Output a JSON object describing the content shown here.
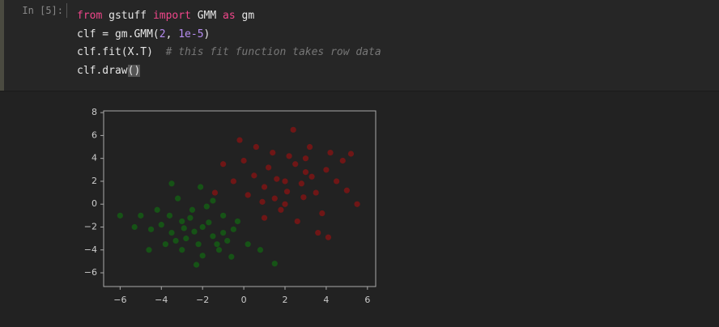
{
  "prompt": "In [5]:",
  "code": {
    "lines": [
      [
        "from",
        " gstuff ",
        "import",
        " GMM ",
        "as",
        " gm"
      ],
      [
        "clf = gm.GMM(",
        "2",
        ", ",
        "1e-5",
        ")"
      ],
      [
        "clf.fit(X.T)  ",
        "# this fit function takes row data"
      ],
      [
        "clf.draw",
        "()"
      ]
    ]
  },
  "chart_data": {
    "type": "scatter",
    "xlim": [
      -6.8,
      6.4
    ],
    "ylim": [
      -7.2,
      8.15
    ],
    "xticks": [
      {
        "value": -6,
        "label": "−6"
      },
      {
        "value": -4,
        "label": "−4"
      },
      {
        "value": -2,
        "label": "−2"
      },
      0,
      2,
      4,
      6
    ],
    "yticks": [
      {
        "value": -6,
        "label": "−6"
      },
      {
        "value": -4,
        "label": "−4"
      },
      {
        "value": -2,
        "label": "−2"
      },
      0,
      2,
      4,
      6,
      8
    ],
    "series": [
      {
        "color": "#00b000",
        "x": [
          -2,
          -3,
          -1.5,
          -2.5,
          -3.5,
          -1,
          -2.2,
          -4,
          -0.5,
          -2.8,
          -1.8,
          -3.2,
          -4.5,
          -1.2,
          -2.6,
          -0.8,
          -3.8,
          -2,
          -5,
          -1.5,
          -2.4,
          -3,
          0.2,
          -4.2,
          -0.3,
          -3.6,
          -1,
          -2.9,
          -5.3,
          -2.1,
          -1.7,
          -3.3,
          -0.6,
          -4.6,
          0.8,
          -2.3,
          -6,
          -3.5,
          1.5,
          -1.3
        ],
        "values": [
          -2,
          -1.5,
          -2.8,
          -0.5,
          -2.5,
          -1,
          -3.5,
          -1.8,
          -2.2,
          -3,
          -0.2,
          0.5,
          -2.2,
          -4,
          -1.2,
          -3.2,
          -3.5,
          -4.5,
          -1,
          0.3,
          -2.4,
          -4,
          -3.5,
          -0.5,
          -1.5,
          -1,
          -2.5,
          -2.1,
          -2,
          1.5,
          -1.6,
          -3.2,
          -4.6,
          -4,
          -4,
          -5.3,
          -1,
          1.8,
          -5.2,
          -3.5
        ]
      },
      {
        "color": "#ff0000",
        "x": [
          2,
          1,
          3,
          1.5,
          2.5,
          0.5,
          3.5,
          2.2,
          1.8,
          4,
          0.2,
          2.8,
          -0.5,
          3.2,
          1.2,
          4.5,
          2,
          3.8,
          0,
          1.6,
          2.6,
          5,
          -1,
          3,
          1,
          4.2,
          2.4,
          0.6,
          5.5,
          3.6,
          -1.4,
          4.8,
          1.4,
          2.9,
          0.9,
          3.3,
          -0.2,
          4.1,
          5.2,
          2.1
        ],
        "values": [
          2,
          1.5,
          2.8,
          0.5,
          3.5,
          2.5,
          1,
          4.2,
          -0.5,
          3,
          0.8,
          1.8,
          2,
          5,
          3.2,
          2,
          0,
          -0.8,
          3.8,
          2.2,
          -1.5,
          1.2,
          3.5,
          4,
          -1.2,
          4.5,
          6.5,
          5,
          0,
          -2.5,
          1,
          3.8,
          4.5,
          0.6,
          0.2,
          2.4,
          5.6,
          -2.9,
          4.4,
          1.1
        ]
      }
    ]
  }
}
